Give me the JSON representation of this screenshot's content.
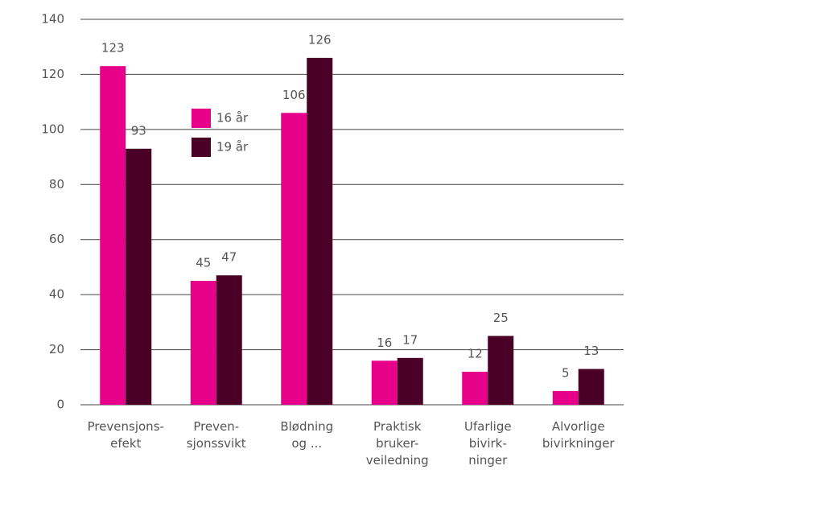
{
  "chart_data": {
    "type": "bar",
    "categories": [
      "Prevensjons-\nefekt",
      "Preven-\nsjonssvikt",
      "Blødning\nog ...",
      "Praktisk\nbruker-\nveiledning",
      "Ufarlige\nbivirk-\nninger",
      "Alvorlige\nbivirkninger"
    ],
    "series": [
      {
        "name": "16 år",
        "color": "#e6008a",
        "values": [
          123,
          45,
          106,
          16,
          12,
          5
        ]
      },
      {
        "name": "19 år",
        "color": "#4a0026",
        "values": [
          93,
          47,
          126,
          17,
          25,
          13
        ]
      }
    ],
    "ylim": [
      0,
      140
    ],
    "yticks": [
      0,
      20,
      40,
      60,
      80,
      100,
      120,
      140
    ],
    "grid": true,
    "legend": "upper left"
  }
}
